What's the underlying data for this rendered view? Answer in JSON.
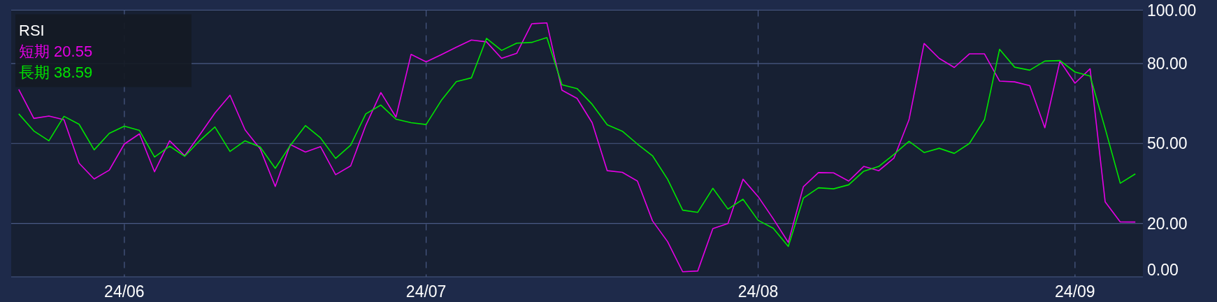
{
  "chart_data": {
    "type": "line",
    "legend_title": "RSI",
    "categories": [
      null,
      null,
      null,
      null,
      null,
      null,
      null,
      "24/06",
      null,
      null,
      null,
      null,
      null,
      null,
      null,
      null,
      null,
      null,
      null,
      null,
      null,
      null,
      null,
      null,
      null,
      null,
      null,
      "24/07",
      null,
      null,
      null,
      null,
      null,
      null,
      null,
      null,
      null,
      null,
      null,
      null,
      null,
      null,
      null,
      null,
      null,
      null,
      null,
      null,
      null,
      "24/08",
      null,
      null,
      null,
      null,
      null,
      null,
      null,
      null,
      null,
      null,
      null,
      null,
      null,
      null,
      null,
      null,
      null,
      null,
      null,
      null,
      "24/09",
      null,
      null,
      null,
      null
    ],
    "ylim": [
      0,
      100
    ],
    "yticks": [
      {
        "value": 0,
        "label": "0.00"
      },
      {
        "value": 20,
        "label": "20.00"
      },
      {
        "value": 50,
        "label": "50.00"
      },
      {
        "value": 80,
        "label": "80.00"
      },
      {
        "value": 100,
        "label": "100.00"
      }
    ],
    "grid": true,
    "legend": "top left",
    "line_style": "solid",
    "marker": "none",
    "series": [
      {
        "name": "短期 20.55",
        "color": "#e600e6",
        "values": [
          70.3,
          59.4,
          60.3,
          58.9,
          42.6,
          36.7,
          40.0,
          49.8,
          53.6,
          39.4,
          51.0,
          45.4,
          53.3,
          61.4,
          68.1,
          55.1,
          48.0,
          33.9,
          49.6,
          46.8,
          48.8,
          38.3,
          41.6,
          56.8,
          69.1,
          59.9,
          83.4,
          80.6,
          83.3,
          86.1,
          88.8,
          88.1,
          81.9,
          83.8,
          94.9,
          95.2,
          70.0,
          66.9,
          57.8,
          39.8,
          39.2,
          35.9,
          21.0,
          13.2,
          1.9,
          2.2,
          18.1,
          20.0,
          36.6,
          30.1,
          21.8,
          12.9,
          33.8,
          39.1,
          39.0,
          35.9,
          41.4,
          39.8,
          44.5,
          58.9,
          87.5,
          81.9,
          78.5,
          83.6,
          83.6,
          73.4,
          73.1,
          71.7,
          55.9,
          80.9,
          72.6,
          78.0,
          28.1,
          20.6,
          20.55
        ]
      },
      {
        "name": "長期 38.59",
        "color": "#00e600",
        "values": [
          61.1,
          54.7,
          51.0,
          60.2,
          57.2,
          47.6,
          53.8,
          56.5,
          54.9,
          44.9,
          49.0,
          45.2,
          51.1,
          56.2,
          47.0,
          51.0,
          48.7,
          40.7,
          49.3,
          56.7,
          52.1,
          44.4,
          49.4,
          61.1,
          64.4,
          59.1,
          57.8,
          57.1,
          66.1,
          73.2,
          74.6,
          89.4,
          84.9,
          87.6,
          87.9,
          89.7,
          72.0,
          70.6,
          64.7,
          57.0,
          54.6,
          49.8,
          45.4,
          36.6,
          25.0,
          24.2,
          33.2,
          25.4,
          29.1,
          21.2,
          18.2,
          11.4,
          29.5,
          33.4,
          33.0,
          34.5,
          39.6,
          41.4,
          45.9,
          50.8,
          46.6,
          48.2,
          46.3,
          50.0,
          58.9,
          85.3,
          78.6,
          77.5,
          80.9,
          81.1,
          76.8,
          75.3,
          55.6,
          35.1,
          38.59
        ]
      }
    ]
  }
}
